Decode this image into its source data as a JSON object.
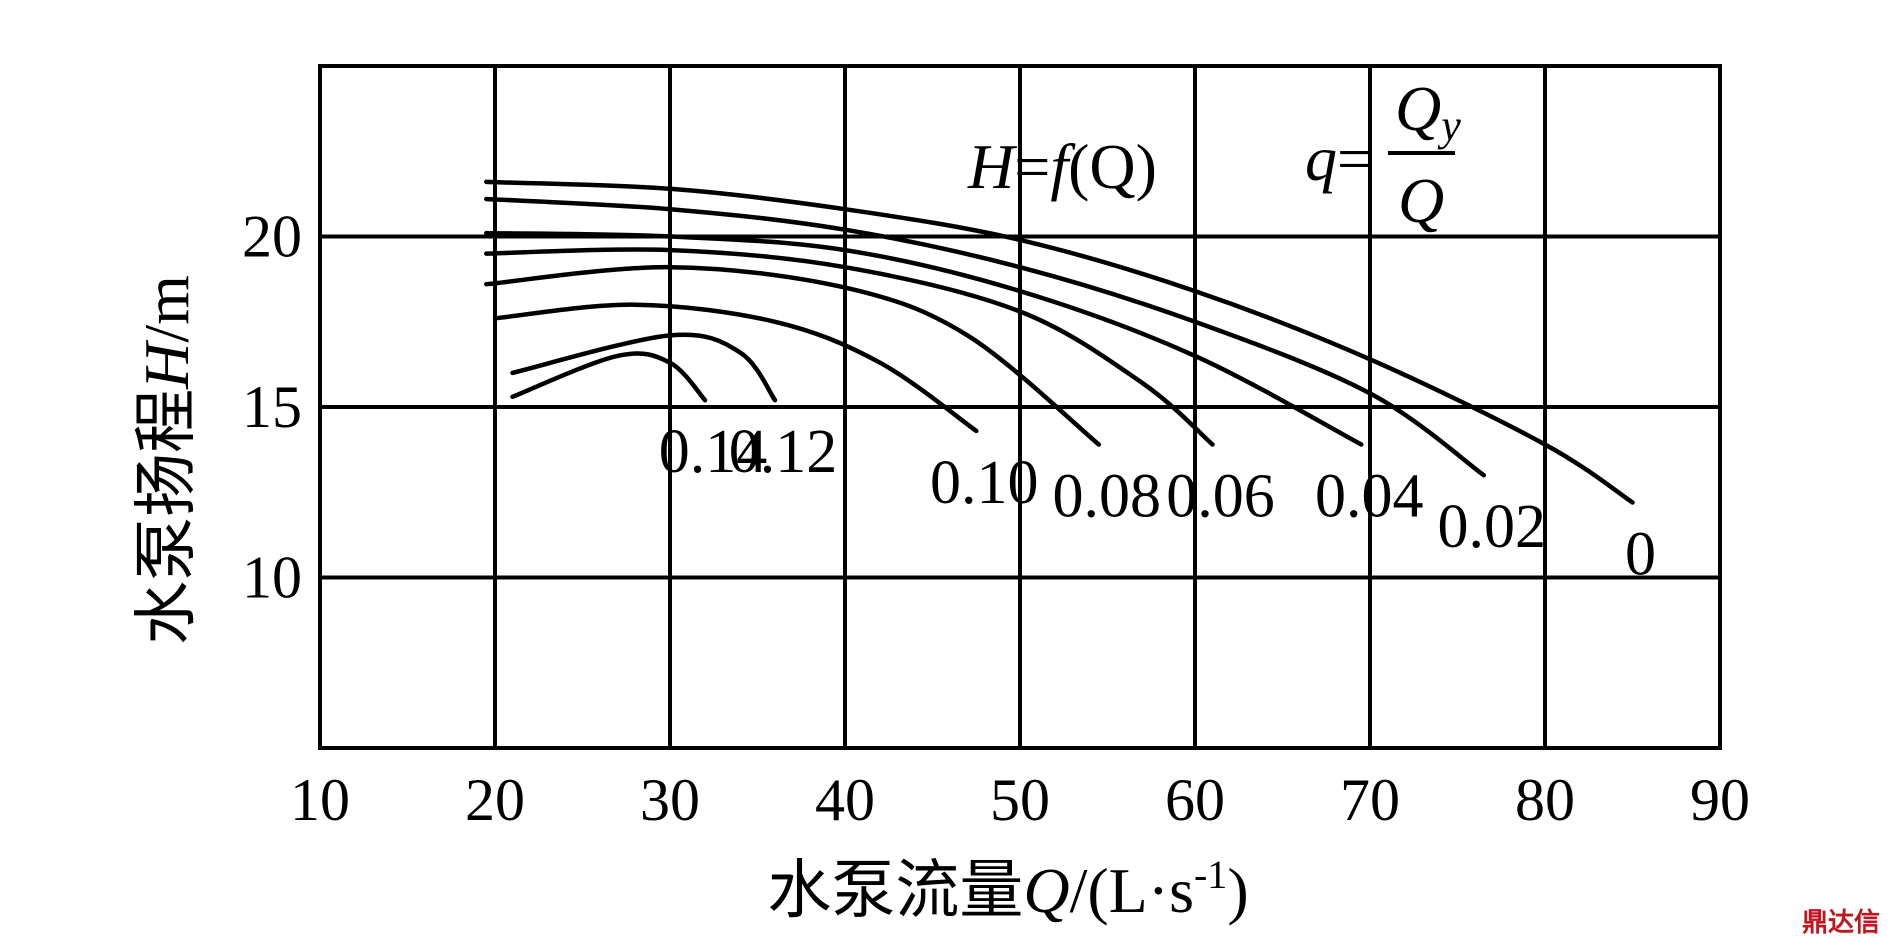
{
  "chart_data": {
    "type": "line",
    "xlabel": {
      "cjk": "水泵流量",
      "var": "Q",
      "unit_pre": "/(L·s",
      "sup": "-1",
      "unit_post": ")"
    },
    "ylabel": {
      "cjk": "水泵扬程",
      "var": "H",
      "unit": "/m"
    },
    "xlim": [
      10,
      90
    ],
    "ylim": [
      5,
      25
    ],
    "x_ticks": [
      "10",
      "20",
      "30",
      "40",
      "50",
      "60",
      "70",
      "80",
      "90"
    ],
    "y_ticks": [
      "10",
      "15",
      "20"
    ],
    "y_tick_values": [
      10,
      15,
      20
    ],
    "grid": true,
    "annotations": {
      "h_eq": {
        "H": "H",
        "eq": "=",
        "f": "f",
        "arg": "(Q)"
      },
      "q_eq": {
        "q": "q",
        "eq": "=",
        "num": "Q",
        "num_sub": "y",
        "den": "Q"
      }
    },
    "series": [
      {
        "label": "0",
        "points": [
          [
            19.5,
            21.6
          ],
          [
            30,
            21.4
          ],
          [
            40,
            20.8
          ],
          [
            50,
            19.9
          ],
          [
            60,
            18.4
          ],
          [
            70,
            16.4
          ],
          [
            80,
            13.9
          ],
          [
            85,
            12.2
          ]
        ]
      },
      {
        "label": "0.02",
        "points": [
          [
            19.5,
            21.1
          ],
          [
            30,
            20.8
          ],
          [
            40,
            20.2
          ],
          [
            50,
            19.1
          ],
          [
            60,
            17.5
          ],
          [
            70,
            15.4
          ],
          [
            76.5,
            13.0
          ]
        ]
      },
      {
        "label": "0.04",
        "points": [
          [
            19.5,
            20.1
          ],
          [
            30,
            20.0
          ],
          [
            40,
            19.6
          ],
          [
            50,
            18.4
          ],
          [
            60,
            16.5
          ],
          [
            69.5,
            13.9
          ]
        ]
      },
      {
        "label": "0.06",
        "points": [
          [
            19.5,
            19.5
          ],
          [
            30,
            19.6
          ],
          [
            40,
            19.1
          ],
          [
            50,
            17.8
          ],
          [
            57,
            15.7
          ],
          [
            61,
            13.9
          ]
        ]
      },
      {
        "label": "0.08",
        "points": [
          [
            19.5,
            18.6
          ],
          [
            30,
            19.1
          ],
          [
            40,
            18.5
          ],
          [
            47,
            17.1
          ],
          [
            54.5,
            13.9
          ]
        ]
      },
      {
        "label": "0.10",
        "points": [
          [
            20,
            17.6
          ],
          [
            28,
            18.0
          ],
          [
            36,
            17.5
          ],
          [
            42,
            16.3
          ],
          [
            47.5,
            14.3
          ]
        ]
      },
      {
        "label": "0.12",
        "points": [
          [
            21,
            16.0
          ],
          [
            30,
            17.1
          ],
          [
            34,
            16.6
          ],
          [
            36,
            15.2
          ]
        ]
      },
      {
        "label": "0.14",
        "points": [
          [
            21,
            15.3
          ],
          [
            27,
            16.5
          ],
          [
            30,
            16.3
          ],
          [
            32,
            15.2
          ]
        ]
      }
    ]
  },
  "watermark": "鼎达信"
}
